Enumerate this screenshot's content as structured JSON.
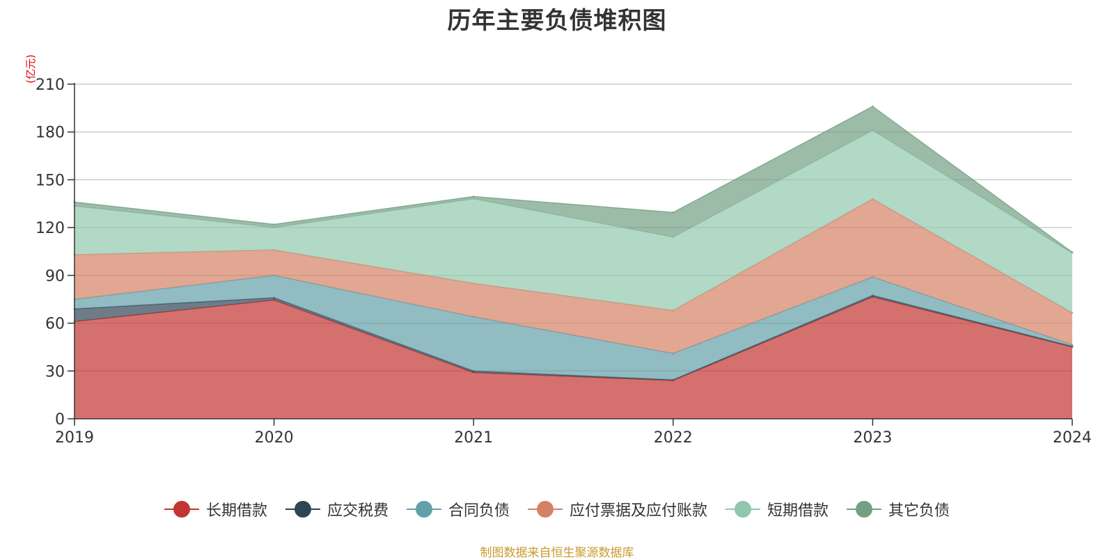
{
  "chart_data": {
    "type": "area",
    "stacked": true,
    "title": "历年主要负债堆积图",
    "unit_label": "(亿元)",
    "x": [
      "2019",
      "2020",
      "2021",
      "2022",
      "2023",
      "2024"
    ],
    "ylim": [
      0,
      210
    ],
    "yticks": [
      0,
      30,
      60,
      90,
      120,
      150,
      180,
      210
    ],
    "grid": true,
    "legend_position": "bottom",
    "series": [
      {
        "name": "长期借款",
        "color": "#c23531",
        "values": [
          61,
          74.5,
          29,
          24,
          76.5,
          45
        ]
      },
      {
        "name": "应交税费",
        "color": "#2f4554",
        "values": [
          8,
          1.5,
          1,
          0.5,
          1,
          0.5
        ]
      },
      {
        "name": "合同负债",
        "color": "#61a0a8",
        "values": [
          6,
          14,
          34,
          16.5,
          11.5,
          1
        ]
      },
      {
        "name": "应付票据及应付账款",
        "color": "#d48265",
        "values": [
          28,
          16,
          21,
          27,
          49,
          20
        ]
      },
      {
        "name": "短期借款",
        "color": "#91c7ae",
        "values": [
          30.5,
          14,
          53,
          46,
          43,
          37.5
        ]
      },
      {
        "name": "其它负债",
        "color": "#749f83",
        "values": [
          2.5,
          2,
          1.5,
          15.5,
          15,
          0.5
        ]
      }
    ]
  },
  "source_text": "制图数据来自恒生聚源数据库"
}
